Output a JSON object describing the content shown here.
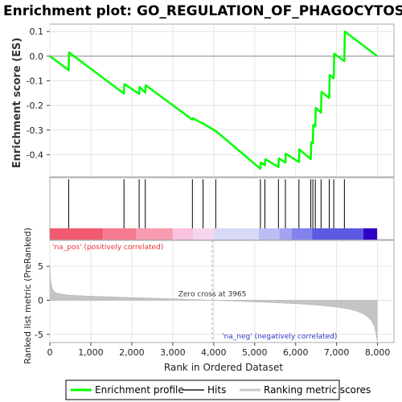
{
  "chart_data": {
    "type": "line",
    "title": "Enrichment plot: GO_REGULATION_OF_PHAGOCYTOSIS",
    "xlabel": "Rank in Ordered Dataset",
    "es_panel": {
      "ylabel": "Enrichment score (ES)",
      "ylim": [
        -0.49,
        0.13
      ],
      "yticks": [
        0.1,
        0.0,
        -0.1,
        -0.2,
        -0.3,
        -0.4
      ],
      "ytick_labels": [
        "0.1",
        "0.0",
        "-0.1",
        "-0.2",
        "-0.3",
        "-0.4"
      ],
      "series": [
        {
          "name": "Enrichment profile",
          "color": "#00ff00",
          "x": [
            0,
            460,
            470,
            1810,
            1820,
            2180,
            2190,
            2330,
            2340,
            3480,
            3490,
            3740,
            3750,
            4050,
            4060,
            5140,
            5150,
            5250,
            5260,
            5580,
            5590,
            5750,
            5760,
            6080,
            6090,
            6370,
            6380,
            6420,
            6430,
            6480,
            6490,
            6620,
            6630,
            6820,
            6830,
            6930,
            6940,
            7190,
            7200,
            7990
          ],
          "y": [
            0.0,
            -0.057,
            0.015,
            -0.152,
            -0.113,
            -0.153,
            -0.125,
            -0.148,
            -0.118,
            -0.258,
            -0.252,
            -0.274,
            -0.275,
            -0.304,
            -0.305,
            -0.457,
            -0.432,
            -0.443,
            -0.418,
            -0.45,
            -0.415,
            -0.432,
            -0.396,
            -0.43,
            -0.378,
            -0.418,
            -0.349,
            -0.354,
            -0.279,
            -0.285,
            -0.21,
            -0.229,
            -0.145,
            -0.17,
            -0.077,
            -0.09,
            0.01,
            -0.02,
            0.1,
            0.0
          ]
        }
      ]
    },
    "hits_panel": {
      "legend_label": "Hits",
      "hit_ranks": [
        460,
        1810,
        2180,
        2330,
        3480,
        3740,
        4050,
        5140,
        5250,
        5580,
        5750,
        6080,
        6370,
        6420,
        6480,
        6620,
        6820,
        6930,
        7190
      ]
    },
    "heatmap_bar": {
      "segments": [
        {
          "from": 0,
          "to": 1300,
          "color": "#f25a70"
        },
        {
          "from": 1300,
          "to": 2100,
          "color": "#f57b8e"
        },
        {
          "from": 2100,
          "to": 3000,
          "color": "#f79bb0"
        },
        {
          "from": 3000,
          "to": 3500,
          "color": "#f9c2de"
        },
        {
          "from": 3500,
          "to": 4000,
          "color": "#f7d4ee"
        },
        {
          "from": 4000,
          "to": 5100,
          "color": "#d9d9fa"
        },
        {
          "from": 5100,
          "to": 5600,
          "color": "#bdbdf5"
        },
        {
          "from": 5600,
          "to": 5900,
          "color": "#a3a3f0"
        },
        {
          "from": 5900,
          "to": 6400,
          "color": "#8282eb"
        },
        {
          "from": 6400,
          "to": 7650,
          "color": "#5a5ae3"
        },
        {
          "from": 7650,
          "to": 7990,
          "color": "#2f00c8"
        }
      ]
    },
    "metric_panel": {
      "ylabel": "Ranked list metric (PreRanked)",
      "legend_label": "Ranking metric scores",
      "ylim": [
        -6.2,
        8.8
      ],
      "yticks": [
        5,
        0,
        -5
      ],
      "ytick_labels": [
        "5",
        "0",
        "-5"
      ],
      "profile_x": [
        0,
        15,
        40,
        80,
        150,
        300,
        500,
        1000,
        2000,
        3000,
        3965,
        5000,
        6000,
        6500,
        7000,
        7300,
        7500,
        7650,
        7750,
        7850,
        7920,
        7960,
        7990
      ],
      "profile_y": [
        5.1,
        3.2,
        2.1,
        1.5,
        1.1,
        0.9,
        0.75,
        0.6,
        0.4,
        0.22,
        0.0,
        -0.22,
        -0.5,
        -0.7,
        -1.0,
        -1.3,
        -1.6,
        -2.0,
        -2.4,
        -3.0,
        -3.8,
        -4.8,
        -6.0
      ],
      "zero_cross_label": "Zero cross at 3965",
      "zero_cross_rank": 3965,
      "pos_label": "'na_pos' (positively correlated)",
      "neg_label": "'na_neg' (negatively correlated)"
    },
    "xlim": [
      0,
      8400
    ],
    "xticks": [
      0,
      1000,
      2000,
      3000,
      4000,
      5000,
      6000,
      7000,
      8000
    ],
    "xtick_labels": [
      "0",
      "1,000",
      "2,000",
      "3,000",
      "4,000",
      "5,000",
      "6,000",
      "7,000",
      "8,000"
    ],
    "grid": true,
    "legend_position": "bottom"
  }
}
